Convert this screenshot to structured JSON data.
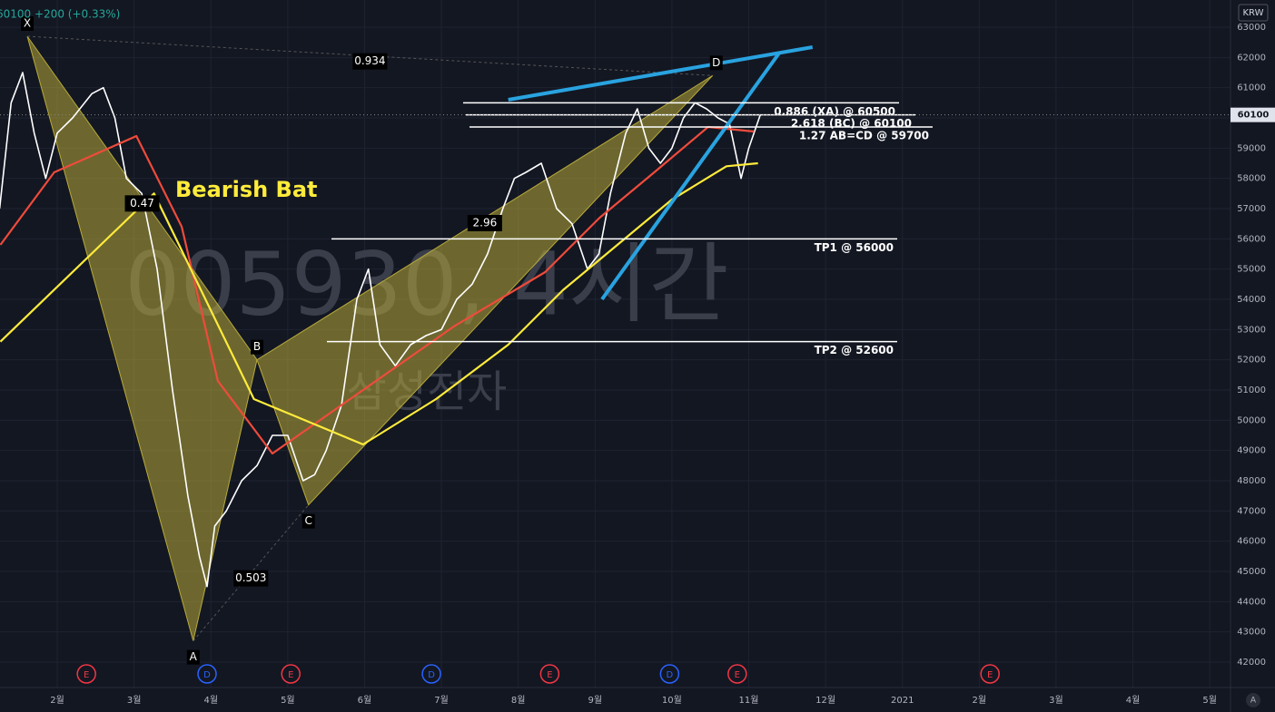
{
  "chart_data": {
    "type": "line",
    "title": "60100 +200 (+0.33%)",
    "currency": "KRW",
    "last_price": 60100,
    "watermark": "005930, 4시간",
    "watermark_sub": "삼성전자",
    "xlim": [
      0.255,
      16.27
    ],
    "ylim": [
      41160,
      63900
    ],
    "xticks": [
      {
        "value": 1,
        "label": "2월"
      },
      {
        "value": 2,
        "label": "3월"
      },
      {
        "value": 3,
        "label": "4월"
      },
      {
        "value": 4,
        "label": "5월"
      },
      {
        "value": 5,
        "label": "6월"
      },
      {
        "value": 6,
        "label": "7월"
      },
      {
        "value": 7,
        "label": "8월"
      },
      {
        "value": 8,
        "label": "9월"
      },
      {
        "value": 9,
        "label": "10월"
      },
      {
        "value": 10,
        "label": "11월"
      },
      {
        "value": 11,
        "label": "12월"
      },
      {
        "value": 12,
        "label": "2021"
      },
      {
        "value": 13,
        "label": "2월"
      },
      {
        "value": 14,
        "label": "3월"
      },
      {
        "value": 15,
        "label": "4월"
      },
      {
        "value": 16,
        "label": "5월"
      }
    ],
    "yticks": [
      42000,
      43000,
      44000,
      45000,
      46000,
      47000,
      48000,
      49000,
      50000,
      51000,
      52000,
      53000,
      54000,
      55000,
      56000,
      57000,
      58000,
      59000,
      60000,
      61000,
      62000,
      63000
    ],
    "grid": true,
    "series": [
      {
        "color": "#ffffff",
        "x": [
          0.25,
          0.4,
          0.55,
          0.7,
          0.85,
          1.0,
          1.2,
          1.45,
          1.6,
          1.75,
          1.9,
          2.1,
          2.3,
          2.5,
          2.7,
          2.85,
          2.95,
          3.05,
          3.2,
          3.4,
          3.6,
          3.8,
          4.0,
          4.2,
          4.35,
          4.5,
          4.7,
          4.9,
          5.05,
          5.2,
          5.4,
          5.6,
          5.8,
          6.0,
          6.2,
          6.4,
          6.6,
          6.8,
          6.95,
          7.1,
          7.3,
          7.5,
          7.7,
          7.9,
          8.05,
          8.2,
          8.4,
          8.55,
          8.7,
          8.85,
          9.0,
          9.15,
          9.3,
          9.45,
          9.6,
          9.75,
          9.9,
          10.0,
          10.15
        ],
        "values": [
          57000,
          60500,
          61500,
          59500,
          58000,
          59500,
          60000,
          60800,
          61000,
          60000,
          58000,
          57500,
          55000,
          51000,
          47500,
          45500,
          44500,
          46500,
          47000,
          48000,
          48500,
          49500,
          49500,
          48000,
          48200,
          49000,
          50500,
          54000,
          55000,
          52500,
          51800,
          52500,
          52800,
          53000,
          54000,
          54500,
          55500,
          57000,
          58000,
          58200,
          58500,
          57000,
          56500,
          55000,
          55500,
          57500,
          59500,
          60300,
          59000,
          58500,
          59000,
          60000,
          60500,
          60300,
          60000,
          59800,
          58000,
          59000,
          60100
        ]
      },
      {
        "color": "#ef4b3b",
        "x": [
          0.26,
          0.96,
          2.03,
          2.62,
          3.09,
          3.8,
          4.98,
          6.16,
          7.35,
          8.06,
          8.77,
          9.47,
          10.07
        ],
        "values": [
          55800,
          58200,
          59400,
          56400,
          51300,
          48900,
          51000,
          53100,
          54900,
          56700,
          58200,
          59700,
          59550
        ]
      },
      {
        "color": "#ffeb3b",
        "x": [
          0.26,
          2.26,
          3.56,
          4.98,
          5.93,
          6.87,
          7.58,
          8.29,
          9.0,
          9.71,
          10.12
        ],
        "values": [
          52600,
          57500,
          50700,
          49200,
          50700,
          52500,
          54300,
          55800,
          57300,
          58400,
          58500
        ]
      }
    ],
    "pattern": {
      "name": "Bearish Bat",
      "color": "#b8a93a",
      "points": [
        {
          "label": "X",
          "x": 0.61,
          "y": 62700
        },
        {
          "label": "A",
          "x": 2.77,
          "y": 42700
        },
        {
          "label": "B",
          "x": 3.6,
          "y": 52000
        },
        {
          "label": "C",
          "x": 4.27,
          "y": 47200
        },
        {
          "label": "D",
          "x": 9.53,
          "y": 61400
        }
      ],
      "ratios": [
        0.934,
        0.47,
        0.503,
        2.96
      ]
    },
    "levels": [
      {
        "label": "0.886 (XA) @ 60500",
        "value": 60500
      },
      {
        "label": "2.618 (BC) @ 60100",
        "value": 60100
      },
      {
        "label": "1.27 AB=CD @ 59700",
        "value": 59700
      },
      {
        "label": "TP1 @ 56000",
        "value": 56000
      },
      {
        "label": "TP2 @ 52600",
        "value": 52600
      }
    ],
    "trendlines": [
      {
        "color": "#29a3e0",
        "x": [
          6.87,
          10.83
        ],
        "values": [
          60600,
          62340
        ]
      },
      {
        "color": "#29a3e0",
        "x": [
          8.09,
          10.4
        ],
        "values": [
          54000,
          62160
        ]
      }
    ],
    "events": [
      {
        "label": "E",
        "x": 1.38
      },
      {
        "label": "D",
        "x": 2.95
      },
      {
        "label": "E",
        "x": 4.04
      },
      {
        "label": "D",
        "x": 5.87
      },
      {
        "label": "E",
        "x": 7.41
      },
      {
        "label": "D",
        "x": 8.97
      },
      {
        "label": "E",
        "x": 9.85
      },
      {
        "label": "E",
        "x": 13.14
      }
    ]
  }
}
